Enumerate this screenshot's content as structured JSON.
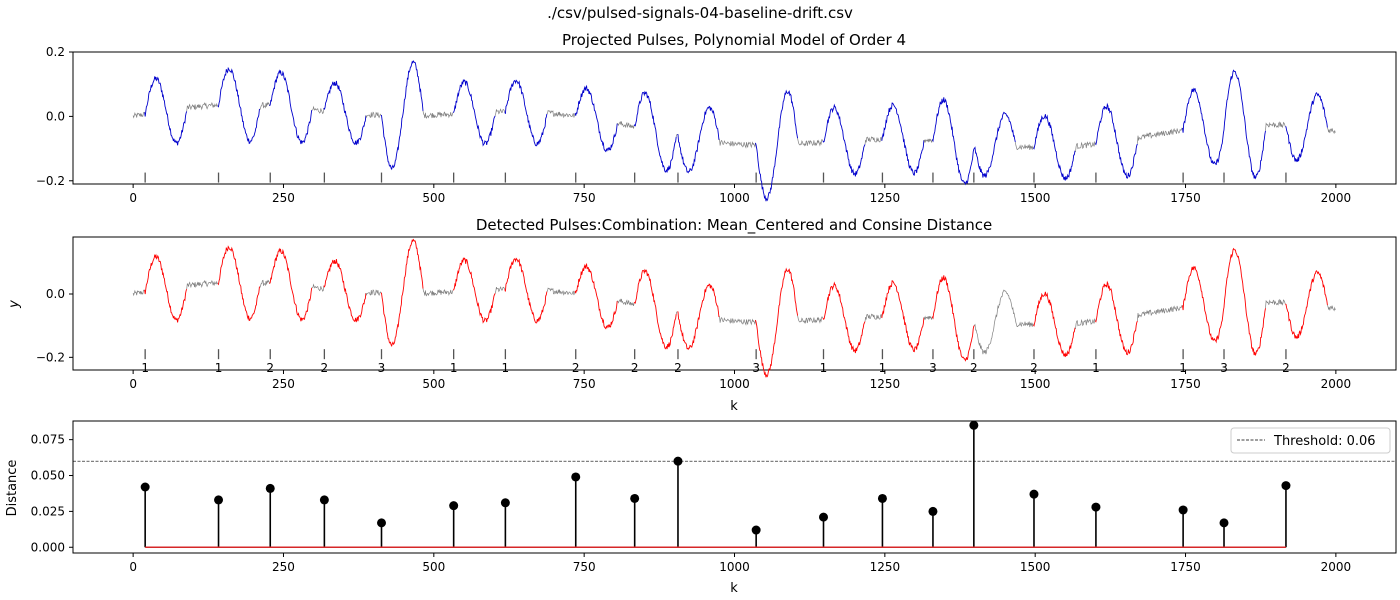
{
  "figure_title": "./csv/pulsed-signals-04-baseline-drift.csv",
  "chart_data": [
    {
      "type": "line",
      "title": "Projected Pulses, Polynomial Model of Order 4",
      "xlabel": "",
      "ylabel": "",
      "xlim": [
        -100,
        2100
      ],
      "ylim": [
        -0.21,
        0.2
      ],
      "xticks": [
        0,
        250,
        500,
        750,
        1000,
        1250,
        1500,
        1750,
        2000
      ],
      "yticks": [
        -0.2,
        0.0,
        0.2
      ],
      "ytick_labels": [
        "−0.2",
        "0.0",
        "0.2"
      ],
      "marker_y": -0.19,
      "pulse_starts": [
        20,
        142,
        228,
        318,
        413,
        533,
        619,
        736,
        834,
        906,
        1036,
        1148,
        1246,
        1330,
        1398,
        1498,
        1601,
        1746,
        1814,
        1917
      ],
      "background_color": "#808080",
      "pulse_color": "#0000cc"
    },
    {
      "type": "line",
      "title": "Detected Pulses:Combination: Mean_Centered and Consine Distance",
      "xlabel": "k",
      "ylabel": "y",
      "xlim": [
        -100,
        2100
      ],
      "ylim": [
        -0.24,
        0.18
      ],
      "xticks": [
        0,
        250,
        500,
        750,
        1000,
        1250,
        1500,
        1750,
        2000
      ],
      "yticks": [
        -0.2,
        0.0
      ],
      "ytick_labels": [
        "−0.2",
        "0.0"
      ],
      "marker_y": -0.19,
      "pulse_starts": [
        20,
        142,
        228,
        318,
        413,
        533,
        619,
        736,
        834,
        906,
        1036,
        1148,
        1246,
        1330,
        1398,
        1498,
        1601,
        1746,
        1814,
        1917
      ],
      "cluster_labels": [
        "1",
        "1",
        "2",
        "2",
        "3",
        "1",
        "1",
        "2",
        "2",
        "2",
        "3",
        "1",
        "1",
        "3",
        "2",
        "2",
        "1",
        "1",
        "3",
        "2"
      ],
      "detected": [
        true,
        true,
        true,
        true,
        true,
        true,
        true,
        true,
        true,
        true,
        true,
        true,
        true,
        true,
        false,
        true,
        true,
        true,
        true,
        true
      ],
      "background_color": "#808080",
      "pulse_color": "#ff0000"
    },
    {
      "type": "stem",
      "title": "",
      "xlabel": "k",
      "ylabel": "Distance",
      "xlim": [
        -100,
        2100
      ],
      "ylim": [
        -0.004,
        0.088
      ],
      "xticks": [
        0,
        250,
        500,
        750,
        1000,
        1250,
        1500,
        1750,
        2000
      ],
      "yticks": [
        0.0,
        0.025,
        0.05,
        0.075
      ],
      "ytick_labels": [
        "0.000",
        "0.025",
        "0.050",
        "0.075"
      ],
      "x": [
        20,
        142,
        228,
        318,
        413,
        533,
        619,
        736,
        834,
        906,
        1036,
        1148,
        1246,
        1330,
        1398,
        1498,
        1601,
        1746,
        1814,
        1917
      ],
      "values": [
        0.042,
        0.033,
        0.041,
        0.033,
        0.017,
        0.029,
        0.031,
        0.049,
        0.034,
        0.06,
        0.012,
        0.021,
        0.034,
        0.025,
        0.085,
        0.037,
        0.028,
        0.026,
        0.017,
        0.043
      ],
      "threshold": 0.06,
      "legend": {
        "label": "Threshold: 0.06",
        "position": "upper-right"
      },
      "stem_color": "#000000",
      "baseline_color": "#d62728"
    }
  ]
}
